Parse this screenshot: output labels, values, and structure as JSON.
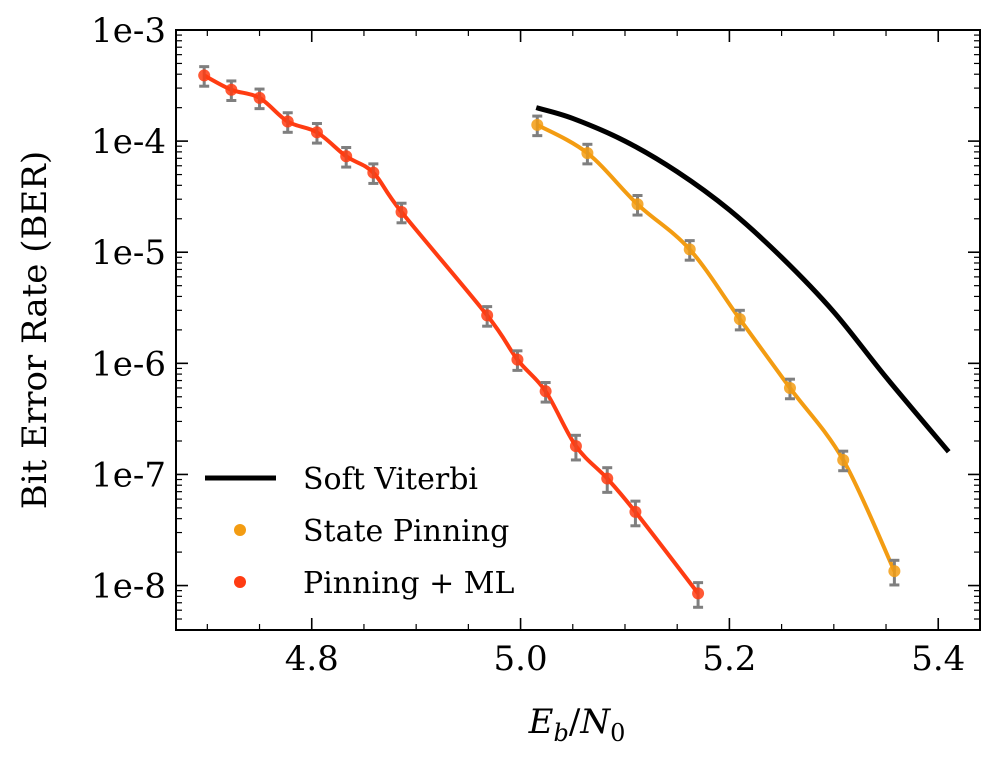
{
  "chart_data": {
    "type": "scatter",
    "title": "",
    "xlabel_parts": {
      "E": "E",
      "b": "b",
      "slash": "/",
      "N": "N",
      "zero": "0"
    },
    "ylabel": "Bit Error Rate (BER)",
    "xlim": [
      4.67,
      5.44
    ],
    "ylim_log10": [
      -8.4,
      -3.0
    ],
    "yscale": "log",
    "x_ticks": [
      4.8,
      5.0,
      5.2,
      5.4
    ],
    "x_tick_labels": [
      "4.8",
      "5.0",
      "5.2",
      "5.4"
    ],
    "y_ticks_log10": [
      -8,
      -7,
      -6,
      -5,
      -4,
      -3
    ],
    "y_tick_labels": [
      "1e-8",
      "1e-7",
      "1e-6",
      "1e-5",
      "1e-4",
      "1e-3"
    ],
    "legend_position": "lower-left",
    "series": [
      {
        "name": "Soft Viterbi",
        "kind": "line",
        "color": "#000000",
        "x": [
          5.015,
          5.05,
          5.1,
          5.15,
          5.2,
          5.25,
          5.3,
          5.35,
          5.41
        ],
        "y": [
          0.0002,
          0.00016,
          0.0001,
          5.3e-05,
          2.4e-05,
          9e-06,
          2.9e-06,
          7.5e-07,
          1.6e-07
        ]
      },
      {
        "name": "State Pinning",
        "kind": "points+fit",
        "color": "#f39c12",
        "errorbar_color": "#7f7f7f",
        "x": [
          5.016,
          5.064,
          5.112,
          5.162,
          5.21,
          5.258,
          5.309,
          5.358
        ],
        "y": [
          0.00014,
          7.8e-05,
          2.7e-05,
          1.06e-05,
          2.5e-06,
          6e-07,
          1.35e-07,
          1.35e-08
        ],
        "err_rel": [
          0.2,
          0.2,
          0.2,
          0.2,
          0.2,
          0.2,
          0.2,
          0.25
        ]
      },
      {
        "name": "Pinning + ML",
        "kind": "points+fit",
        "color": "#ff3c12",
        "errorbar_color": "#7f7f7f",
        "x": [
          4.697,
          4.723,
          4.75,
          4.777,
          4.805,
          4.833,
          4.859,
          4.886,
          4.968,
          4.997,
          5.024,
          5.053,
          5.083,
          5.11,
          5.17
        ],
        "y": [
          0.00039,
          0.00029,
          0.000245,
          0.00015,
          0.00012,
          7.3e-05,
          5.2e-05,
          2.3e-05,
          2.7e-06,
          1.08e-06,
          5.6e-07,
          1.8e-07,
          9.2e-08,
          4.6e-08,
          8.5e-09
        ],
        "err_rel": [
          0.2,
          0.2,
          0.2,
          0.2,
          0.2,
          0.2,
          0.2,
          0.2,
          0.2,
          0.2,
          0.2,
          0.25,
          0.25,
          0.25,
          0.25
        ]
      }
    ]
  }
}
